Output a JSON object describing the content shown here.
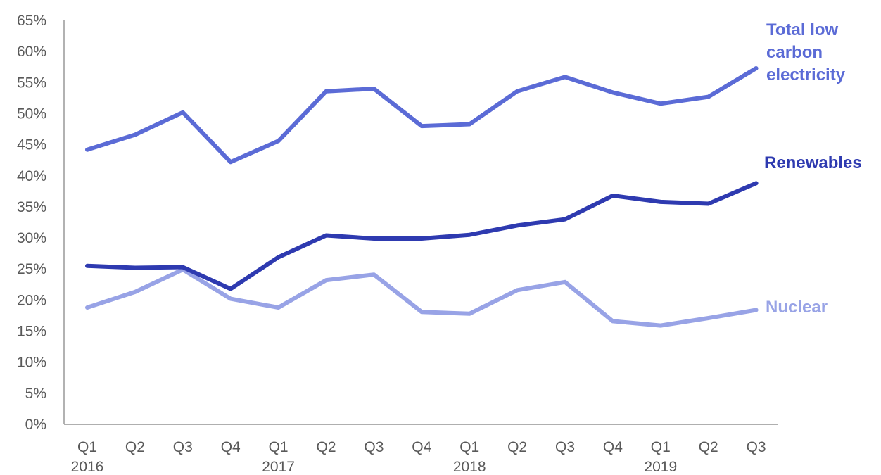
{
  "chart_data": {
    "type": "line",
    "title": "",
    "xlabel": "",
    "ylabel": "",
    "ylim": [
      0,
      65
    ],
    "ytick_step": 5,
    "ytick_suffix": "%",
    "grid": false,
    "legend": "series labels at right end of lines",
    "categories": [
      {
        "quarter": "Q1",
        "year": "2016"
      },
      {
        "quarter": "Q2",
        "year": ""
      },
      {
        "quarter": "Q3",
        "year": ""
      },
      {
        "quarter": "Q4",
        "year": ""
      },
      {
        "quarter": "Q1",
        "year": "2017"
      },
      {
        "quarter": "Q2",
        "year": ""
      },
      {
        "quarter": "Q3",
        "year": ""
      },
      {
        "quarter": "Q4",
        "year": ""
      },
      {
        "quarter": "Q1",
        "year": "2018"
      },
      {
        "quarter": "Q2",
        "year": ""
      },
      {
        "quarter": "Q3",
        "year": ""
      },
      {
        "quarter": "Q4",
        "year": ""
      },
      {
        "quarter": "Q1",
        "year": "2019"
      },
      {
        "quarter": "Q2",
        "year": ""
      },
      {
        "quarter": "Q3",
        "year": ""
      }
    ],
    "series": [
      {
        "name": "Total low carbon electricity",
        "label_lines": [
          "Total low",
          "carbon",
          "electricity"
        ],
        "color": "#5b6bd6",
        "values": [
          44.2,
          46.6,
          50.2,
          42.2,
          45.6,
          53.6,
          54.0,
          48.0,
          48.3,
          53.6,
          55.9,
          53.4,
          51.6,
          52.7,
          57.3
        ]
      },
      {
        "name": "Renewables",
        "label_lines": [
          "Renewables"
        ],
        "color": "#2e3ab0",
        "values": [
          25.5,
          25.2,
          25.3,
          21.8,
          26.9,
          30.4,
          29.9,
          29.9,
          30.5,
          32.0,
          33.0,
          36.8,
          35.8,
          35.5,
          38.8
        ]
      },
      {
        "name": "Nuclear",
        "label_lines": [
          "Nuclear"
        ],
        "color": "#98a3e6",
        "values": [
          18.8,
          21.3,
          24.9,
          20.2,
          18.8,
          23.2,
          24.1,
          18.1,
          17.8,
          21.6,
          22.9,
          16.6,
          15.9,
          17.1,
          18.4
        ]
      }
    ]
  }
}
